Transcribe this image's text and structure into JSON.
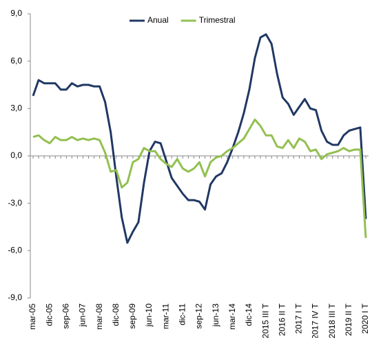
{
  "chart_data": {
    "type": "line",
    "categories": [
      "mar-05",
      null,
      null,
      "dic-05",
      null,
      null,
      "sep-06",
      null,
      null,
      "jun-07",
      null,
      null,
      "mar-08",
      null,
      null,
      "dic-08",
      null,
      null,
      "sep-09",
      null,
      null,
      "jun-10",
      null,
      null,
      "mar-11",
      null,
      null,
      "dic-11",
      null,
      null,
      "sep-12",
      null,
      null,
      "jun-13",
      null,
      null,
      "mar-14",
      null,
      null,
      "dic-14",
      null,
      null,
      "2015 III T",
      null,
      null,
      "2016 II T",
      null,
      null,
      "2017 I T",
      null,
      null,
      "2017 IV T",
      null,
      null,
      "2018 III T",
      null,
      null,
      "2019 II T",
      null,
      null,
      "2020 I T"
    ],
    "series": [
      {
        "name": "Anual",
        "color": "#203864",
        "values": [
          3.8,
          4.8,
          4.6,
          4.6,
          4.6,
          4.2,
          4.2,
          4.6,
          4.4,
          4.5,
          4.5,
          4.4,
          4.4,
          3.4,
          1.5,
          -1.3,
          -3.9,
          -5.5,
          -4.8,
          -4.2,
          -1.7,
          0.3,
          0.9,
          0.8,
          -0.3,
          -1.4,
          -1.9,
          -2.4,
          -2.8,
          -2.8,
          -2.9,
          -3.4,
          -1.8,
          -1.3,
          -1.1,
          -0.4,
          0.5,
          1.5,
          2.7,
          4.2,
          6.2,
          7.5,
          7.7,
          7.1,
          5.2,
          3.7,
          3.3,
          2.6,
          3.1,
          3.6,
          3.0,
          2.9,
          1.6,
          0.9,
          0.7,
          0.7,
          1.3,
          1.6,
          1.7,
          1.8,
          -4.0
        ]
      },
      {
        "name": "Trimestral",
        "color": "#92c050",
        "values": [
          1.2,
          1.3,
          1.0,
          0.8,
          1.2,
          1.0,
          1.0,
          1.2,
          1.0,
          1.1,
          1.0,
          1.1,
          1.0,
          0.2,
          -1.0,
          -0.9,
          -2.0,
          -1.7,
          -0.4,
          -0.2,
          0.5,
          0.3,
          0.3,
          -0.2,
          -0.5,
          -0.7,
          -0.2,
          -0.8,
          -1.0,
          -0.8,
          -0.4,
          -1.3,
          -0.4,
          -0.1,
          0.0,
          0.3,
          0.5,
          0.8,
          1.1,
          1.7,
          2.3,
          1.9,
          1.3,
          1.3,
          0.6,
          0.5,
          1.0,
          0.5,
          1.1,
          0.9,
          0.3,
          0.4,
          -0.2,
          0.1,
          0.2,
          0.3,
          0.5,
          0.3,
          0.4,
          0.4,
          -5.2
        ]
      }
    ],
    "ylim": [
      -9,
      9
    ],
    "yticks": [
      {
        "value": -9,
        "label": "-9,0"
      },
      {
        "value": -6,
        "label": "-6,0"
      },
      {
        "value": -3,
        "label": "-3,0"
      },
      {
        "value": 0,
        "label": "0,0"
      },
      {
        "value": 3,
        "label": "3,0"
      },
      {
        "value": 6,
        "label": "6,0"
      },
      {
        "value": 9,
        "label": "9,0"
      }
    ],
    "legend": "top"
  }
}
